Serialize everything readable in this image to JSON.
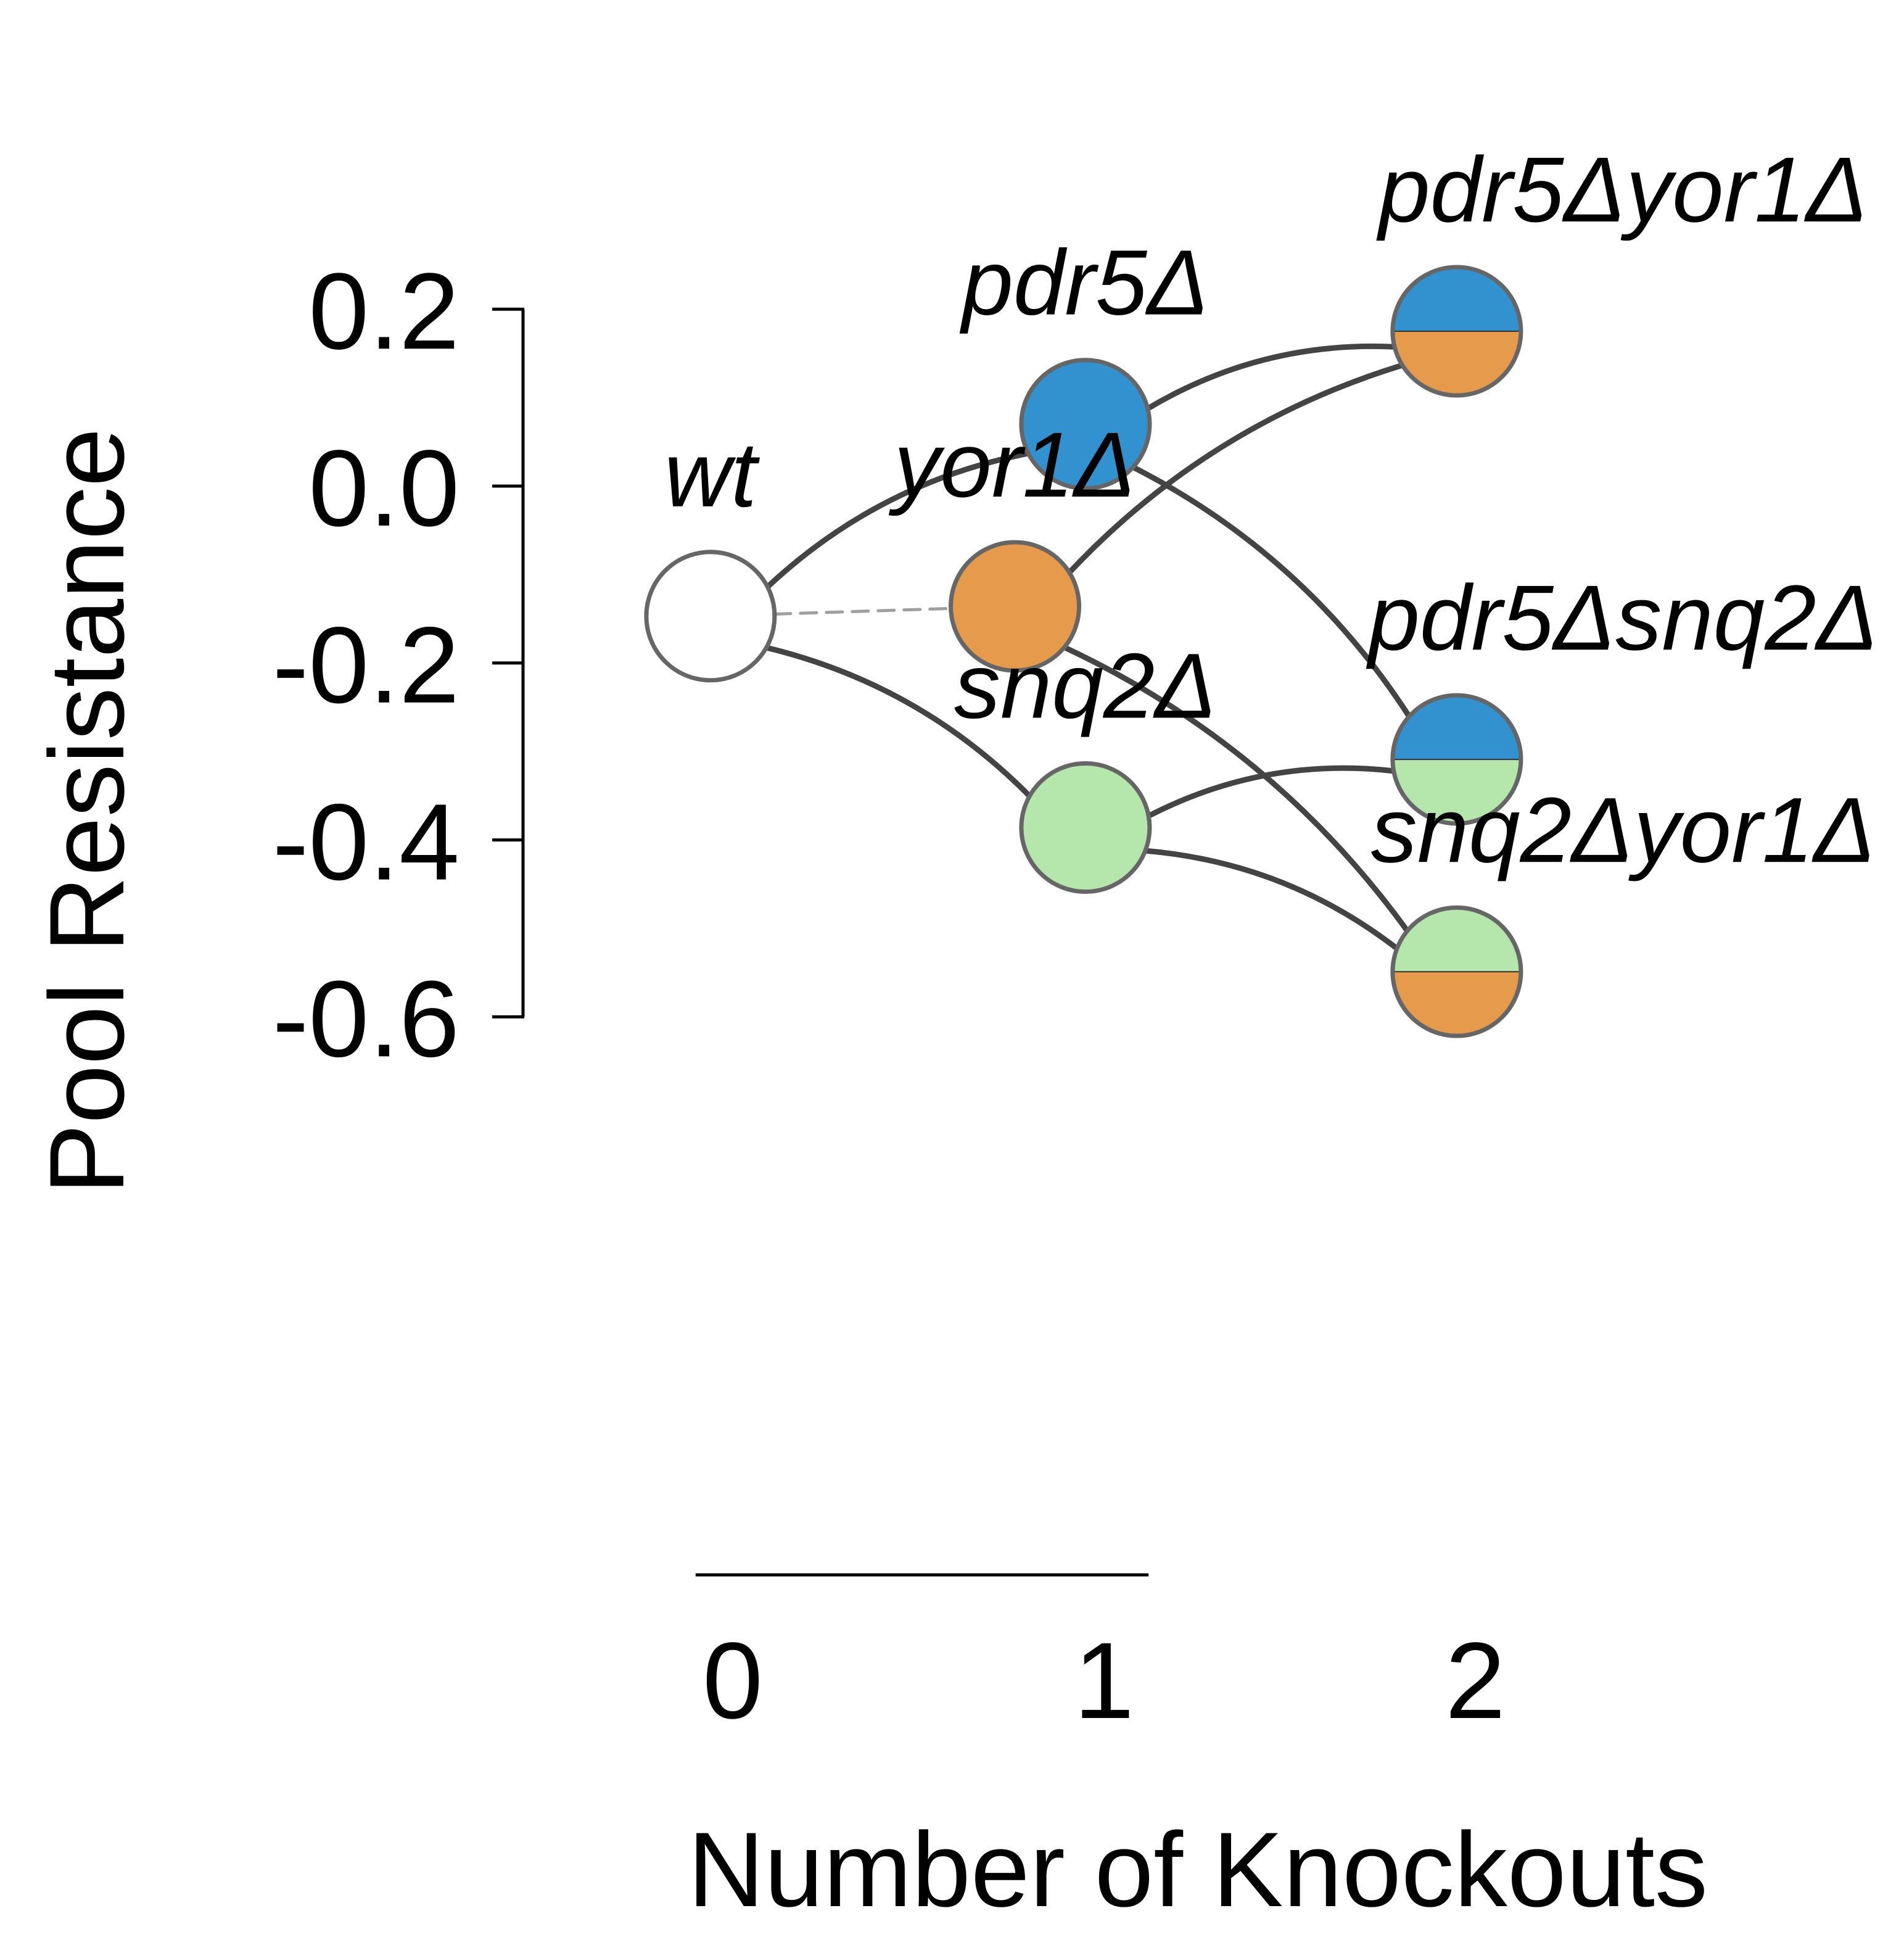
{
  "chart_data": {
    "type": "scatter",
    "xlabel": "Number of Knockouts",
    "ylabel": "Pool Resistance",
    "xlim": [
      -0.1,
      2.2
    ],
    "ylim": [
      -0.6,
      0.2
    ],
    "x_ticks": [
      0,
      1,
      2
    ],
    "x_tick_labels": [
      "0",
      "1",
      "2"
    ],
    "y_ticks": [
      0.2,
      0.0,
      -0.2,
      -0.4,
      -0.6
    ],
    "y_tick_labels": [
      "0.2",
      "0.0",
      "-0.2",
      "-0.4",
      "-0.6"
    ],
    "nodes": [
      {
        "id": "wt",
        "label": "wt",
        "x": -0.06,
        "y": -0.147,
        "colors": [
          "#ffffff"
        ]
      },
      {
        "id": "pdr5",
        "label": "pdr5Δ",
        "x": 0.95,
        "y": 0.07,
        "colors": [
          "#3192cf"
        ]
      },
      {
        "id": "yor1",
        "label": "yor1Δ",
        "x": 0.76,
        "y": -0.136,
        "colors": [
          "#e69a4c"
        ]
      },
      {
        "id": "snq2",
        "label": "snq2Δ",
        "x": 0.95,
        "y": -0.386,
        "colors": [
          "#b5e6ab"
        ]
      },
      {
        "id": "pdr5yor1",
        "label": "pdr5Δyor1Δ",
        "x": 1.95,
        "y": 0.175,
        "colors": [
          "#3192cf",
          "#e69a4c"
        ]
      },
      {
        "id": "pdr5snq2",
        "label": "pdr5Δsnq2Δ",
        "x": 1.95,
        "y": -0.309,
        "colors": [
          "#3192cf",
          "#b5e6ab"
        ]
      },
      {
        "id": "snq2yor1",
        "label": "snq2Δyor1Δ",
        "x": 1.95,
        "y": -0.549,
        "colors": [
          "#b5e6ab",
          "#e69a4c"
        ]
      }
    ],
    "edges": [
      {
        "from": "wt",
        "to": "pdr5",
        "style": "solid"
      },
      {
        "from": "wt",
        "to": "yor1",
        "style": "dashed"
      },
      {
        "from": "wt",
        "to": "snq2",
        "style": "solid"
      },
      {
        "from": "pdr5",
        "to": "pdr5yor1",
        "style": "solid"
      },
      {
        "from": "pdr5",
        "to": "pdr5snq2",
        "style": "solid"
      },
      {
        "from": "yor1",
        "to": "pdr5yor1",
        "style": "solid"
      },
      {
        "from": "yor1",
        "to": "snq2yor1",
        "style": "solid"
      },
      {
        "from": "snq2",
        "to": "pdr5snq2",
        "style": "solid"
      },
      {
        "from": "snq2",
        "to": "snq2yor1",
        "style": "solid"
      }
    ],
    "colors": {
      "edge": "#444444",
      "dashed_edge": "#a0a0a0",
      "node_stroke": "#666666",
      "axis": "#000000"
    }
  }
}
